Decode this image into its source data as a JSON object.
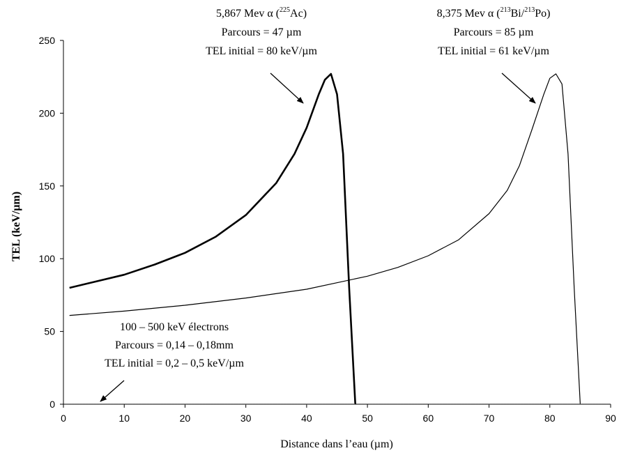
{
  "chart_data": {
    "type": "line",
    "xlabel": "Distance dans l’eau (µm)",
    "ylabel": "TEL (keV/µm)",
    "xlim": [
      0,
      90
    ],
    "ylim": [
      0,
      250
    ],
    "xticks": [
      0,
      10,
      20,
      30,
      40,
      50,
      60,
      70,
      80,
      90
    ],
    "yticks": [
      0,
      50,
      100,
      150,
      200,
      250
    ],
    "grid": false,
    "series": [
      {
        "name": "5,867 Mev α (225Ac)",
        "stroke": "#000000",
        "x": [
          1,
          5,
          10,
          15,
          20,
          25,
          30,
          35,
          38,
          40,
          42,
          43,
          44,
          45,
          46,
          47,
          48
        ],
        "y": [
          80,
          84,
          89,
          96,
          104,
          115,
          130,
          152,
          172,
          190,
          213,
          223,
          227,
          213,
          172,
          80,
          0
        ]
      },
      {
        "name": "8,375 Mev α (213Bi/213Po)",
        "stroke": "#000000",
        "x": [
          1,
          10,
          20,
          30,
          40,
          50,
          55,
          60,
          65,
          70,
          73,
          75,
          77,
          79,
          80,
          81,
          82,
          83,
          84,
          85
        ],
        "y": [
          61,
          64,
          68,
          73,
          79,
          88,
          94,
          102,
          113,
          131,
          147,
          164,
          188,
          213,
          224,
          227,
          220,
          172,
          80,
          0
        ]
      },
      {
        "name": "100 – 500 keV électrons",
        "stroke": "#555555",
        "x": [
          1,
          90
        ],
        "y": [
          0,
          0
        ]
      }
    ],
    "annotations": [
      {
        "lines": [
          "5,867 Mev α (",
          "225",
          "Ac)",
          "Parcours = 47 µm",
          "TEL initial  = 80 keV/µm"
        ],
        "arrow_from": [
          36.5,
          213
        ],
        "arrow_to": [
          41.5,
          210
        ],
        "text_pos": [
          38.5,
          252
        ]
      },
      {
        "lines": [
          "8,375 Mev α (",
          "213",
          "Bi/",
          "213",
          "Po)",
          "Parcours = 85 µm",
          "TEL initial  = 61 keV/µm"
        ],
        "arrow_from": [
          74.5,
          213
        ],
        "arrow_to": [
          78.5,
          210
        ],
        "text_pos": [
          76.5,
          252
        ]
      },
      {
        "lines": [
          "100 – 500 keV électrons",
          "Parcours = 0,14 – 0,18mm",
          "TEL initial  = 0,2 – 0,5  keV/µm"
        ],
        "arrow_from": [
          10,
          20
        ],
        "arrow_to": [
          5.5,
          1
        ],
        "text_pos": [
          18,
          50
        ]
      }
    ]
  },
  "text": {
    "ann1_l1_a": "5,867  Mev α (",
    "ann1_l1_sup": "225",
    "ann1_l1_b": "Ac)",
    "ann1_l2": "Parcours = 47 µm",
    "ann1_l3": "TEL initial  = 80 keV/µm",
    "ann2_l1_a": "8,375  Mev α (",
    "ann2_l1_sup1": "213",
    "ann2_l1_b": "Bi/",
    "ann2_l1_sup2": "213",
    "ann2_l1_c": "Po)",
    "ann2_l2": "Parcours = 85 µm",
    "ann2_l3": "TEL initial  = 61 keV/µm",
    "ann3_l1": "100 – 500 keV électrons",
    "ann3_l2": "Parcours = 0,14 – 0,18mm",
    "ann3_l3": "TEL initial  = 0,2 – 0,5  keV/µm"
  }
}
